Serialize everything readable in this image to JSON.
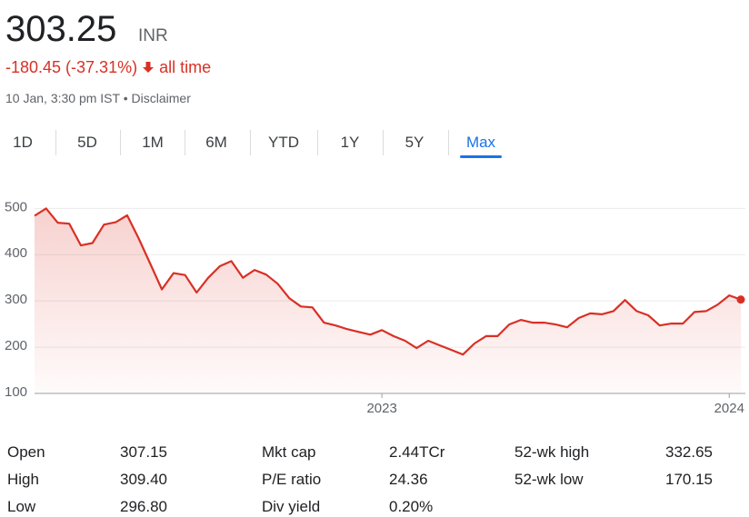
{
  "header": {
    "price": "303.25",
    "currency": "INR",
    "change": "-180.45 (-37.31%)",
    "period": "all time",
    "timestamp": "10 Jan, 3:30 pm IST",
    "disclaimer": "Disclaimer"
  },
  "tabs": {
    "items": [
      "1D",
      "5D",
      "1M",
      "6M",
      "YTD",
      "1Y",
      "5Y",
      "Max"
    ],
    "selected": 7
  },
  "chart_data": {
    "type": "line",
    "categories": [
      null,
      null,
      null,
      null,
      null,
      null,
      null,
      null,
      null,
      null,
      null,
      null,
      null,
      null,
      null,
      null,
      null,
      null,
      null,
      null,
      null,
      null,
      null,
      null,
      null,
      null,
      null,
      null,
      null,
      null,
      "2023",
      null,
      null,
      null,
      null,
      null,
      null,
      null,
      null,
      null,
      null,
      null,
      null,
      null,
      null,
      null,
      null,
      null,
      null,
      null,
      null,
      null,
      null,
      null,
      null,
      null,
      null,
      null,
      null,
      null,
      "2024",
      null
    ],
    "series": [
      {
        "color": "#d93025",
        "values": [
          484,
          500,
          469,
          467,
          420,
          425,
          465,
          470,
          485,
          435,
          380,
          325,
          360,
          356,
          318,
          350,
          375,
          386,
          350,
          367,
          357,
          337,
          306,
          288,
          286,
          253,
          247,
          239,
          233,
          227,
          237,
          224,
          214,
          198,
          214,
          204,
          194,
          184,
          208,
          224,
          224,
          249,
          259,
          253,
          253,
          249,
          243,
          263,
          273,
          271,
          278,
          302,
          278,
          269,
          247,
          251,
          251,
          276,
          278,
          292,
          312,
          303
        ]
      }
    ],
    "ylim": [
      100,
      540
    ],
    "yticks": [
      100,
      200,
      300,
      400,
      500
    ],
    "grid": true
  },
  "stats": [
    [
      "Open",
      "307.15"
    ],
    [
      "High",
      "309.40"
    ],
    [
      "Low",
      "296.80"
    ],
    [
      "Mkt cap",
      "2.44TCr"
    ],
    [
      "P/E ratio",
      "24.36"
    ],
    [
      "Div yield",
      "0.20%"
    ],
    [
      "52-wk high",
      "332.65"
    ],
    [
      "52-wk low",
      "170.15"
    ]
  ]
}
